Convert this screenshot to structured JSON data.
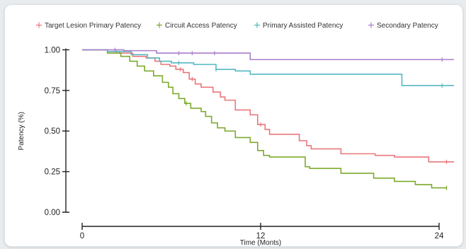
{
  "chart_data": {
    "type": "line",
    "xlabel": "Time (Monts)",
    "ylabel": "Patency (%)",
    "xlim": [
      0,
      25
    ],
    "ylim": [
      0,
      1.05
    ],
    "x_ticks": [
      "0",
      "12",
      "24"
    ],
    "x_tick_values": [
      0,
      12,
      24
    ],
    "y_ticks": [
      "0.00",
      "0.25",
      "0.50",
      "0.75",
      "1.00"
    ],
    "y_tick_values": [
      0,
      0.25,
      0.5,
      0.75,
      1.0
    ],
    "legend_position": "top",
    "series": [
      {
        "name": "Target Lesion Primary Patency",
        "color": "#e8777a",
        "steps": [
          [
            0,
            1.0
          ],
          [
            1.7,
            0.99
          ],
          [
            2.5,
            0.98
          ],
          [
            3.4,
            0.96
          ],
          [
            4.3,
            0.95
          ],
          [
            4.9,
            0.93
          ],
          [
            5.3,
            0.91
          ],
          [
            5.9,
            0.9
          ],
          [
            6.3,
            0.88
          ],
          [
            6.8,
            0.86
          ],
          [
            7.2,
            0.82
          ],
          [
            7.6,
            0.79
          ],
          [
            8.0,
            0.77
          ],
          [
            8.8,
            0.74
          ],
          [
            9.3,
            0.71
          ],
          [
            9.6,
            0.69
          ],
          [
            10.3,
            0.63
          ],
          [
            11.3,
            0.6
          ],
          [
            11.8,
            0.54
          ],
          [
            12.3,
            0.51
          ],
          [
            12.6,
            0.48
          ],
          [
            14.6,
            0.44
          ],
          [
            15.1,
            0.41
          ],
          [
            15.4,
            0.39
          ],
          [
            17.4,
            0.36
          ],
          [
            19.7,
            0.35
          ],
          [
            21.0,
            0.34
          ],
          [
            23.3,
            0.31
          ],
          [
            25.0,
            0.31
          ]
        ],
        "censor_x": [
          2.3,
          6.6,
          7.4,
          12.0,
          24.5
        ]
      },
      {
        "name": "Circuit Access Patency",
        "color": "#7daa2c",
        "steps": [
          [
            0,
            1.0
          ],
          [
            1.7,
            0.98
          ],
          [
            2.6,
            0.96
          ],
          [
            3.2,
            0.93
          ],
          [
            3.7,
            0.9
          ],
          [
            4.2,
            0.87
          ],
          [
            4.8,
            0.84
          ],
          [
            5.4,
            0.8
          ],
          [
            5.8,
            0.77
          ],
          [
            6.1,
            0.73
          ],
          [
            6.5,
            0.7
          ],
          [
            6.9,
            0.67
          ],
          [
            7.3,
            0.64
          ],
          [
            8.0,
            0.62
          ],
          [
            8.3,
            0.59
          ],
          [
            8.7,
            0.55
          ],
          [
            9.1,
            0.52
          ],
          [
            9.6,
            0.5
          ],
          [
            10.3,
            0.46
          ],
          [
            11.3,
            0.43
          ],
          [
            11.8,
            0.38
          ],
          [
            12.2,
            0.35
          ],
          [
            12.6,
            0.34
          ],
          [
            15.0,
            0.28
          ],
          [
            15.3,
            0.27
          ],
          [
            17.4,
            0.24
          ],
          [
            19.6,
            0.21
          ],
          [
            21.0,
            0.19
          ],
          [
            22.4,
            0.17
          ],
          [
            23.5,
            0.15
          ],
          [
            24.5,
            0.15
          ]
        ],
        "censor_x": [
          7.0,
          24.5
        ]
      },
      {
        "name": "Primary Assisted Patency",
        "color": "#55b8c2",
        "steps": [
          [
            0,
            1.0
          ],
          [
            1.7,
            0.99
          ],
          [
            3.3,
            0.97
          ],
          [
            4.4,
            0.95
          ],
          [
            5.2,
            0.93
          ],
          [
            6.0,
            0.92
          ],
          [
            7.5,
            0.91
          ],
          [
            9.0,
            0.88
          ],
          [
            10.3,
            0.87
          ],
          [
            11.3,
            0.85
          ],
          [
            21.0,
            0.85
          ],
          [
            21.5,
            0.78
          ],
          [
            25.0,
            0.78
          ]
        ],
        "censor_x": [
          6.5,
          9.0,
          24.2
        ]
      },
      {
        "name": "Secondary Patency",
        "color": "#a97fcc",
        "steps": [
          [
            0,
            1.0
          ],
          [
            2.8,
            0.995
          ],
          [
            5.0,
            0.98
          ],
          [
            9.5,
            0.98
          ],
          [
            11.3,
            0.94
          ],
          [
            25.0,
            0.94
          ]
        ],
        "censor_x": [
          2.2,
          6.5,
          7.4,
          8.9,
          24.2
        ]
      }
    ]
  }
}
